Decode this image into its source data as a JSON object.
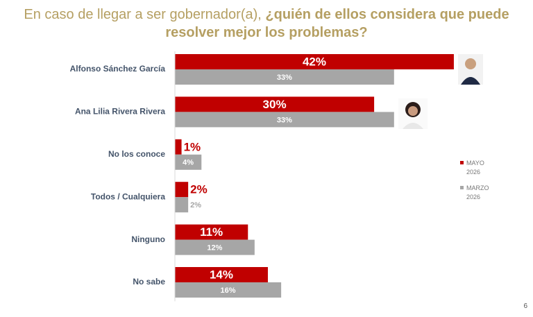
{
  "chart_data": {
    "type": "hbar",
    "title": "En caso de llegar a ser gobernador(a),",
    "title_emphasis": "¿quién de ellos considera que puede resolver mejor los problemas?",
    "categories": [
      "Alfonso Sánchez García",
      "Ana Lilia Rivera Rivera",
      "No los conoce",
      "Todos / Cualquiera",
      "Ninguno",
      "No sabe"
    ],
    "series": [
      {
        "name": "MAYO 2026",
        "color": "#c00000",
        "values": [
          42,
          30,
          1,
          2,
          11,
          14
        ],
        "value_labels": [
          "42%",
          "30%",
          "1%",
          "2%",
          "11%",
          "14%"
        ]
      },
      {
        "name": "MARZO 2026",
        "color": "#a6a6a6",
        "values": [
          33,
          33,
          4,
          2,
          12,
          16
        ],
        "value_labels": [
          "33%",
          "33%",
          "4%",
          "2%",
          "12%",
          "16%"
        ]
      }
    ],
    "page_number": "6"
  }
}
